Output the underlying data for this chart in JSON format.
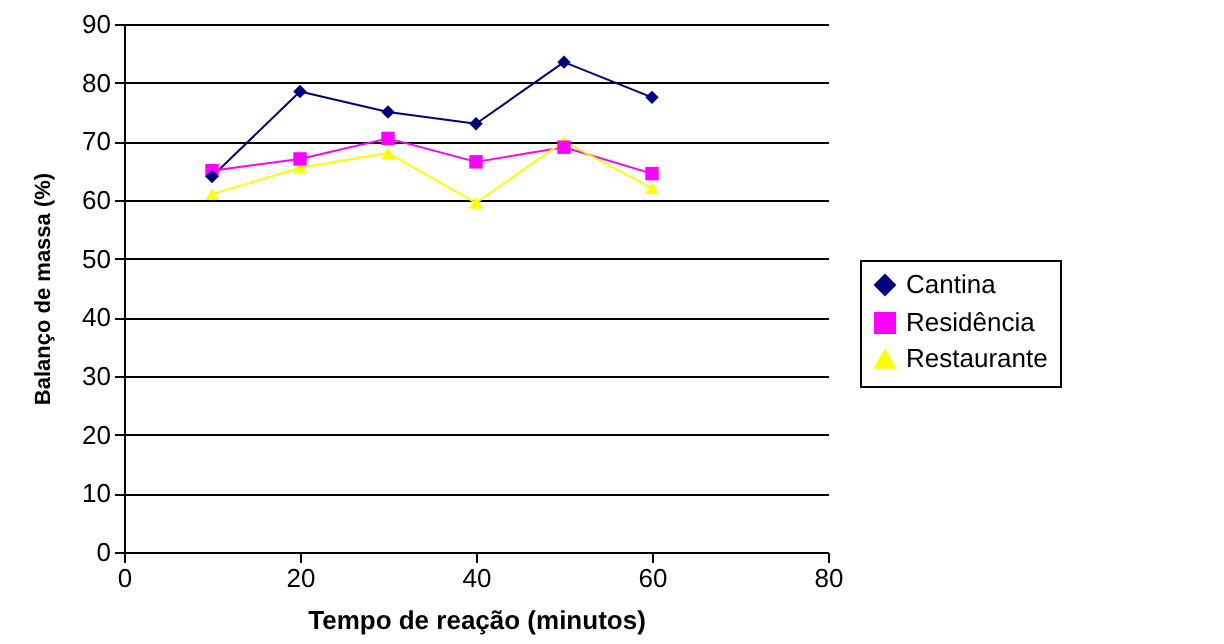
{
  "chart_data": {
    "type": "line",
    "xlabel": "Tempo de reação (minutos)",
    "ylabel": "Balanço de massa (%)",
    "x": [
      10,
      20,
      30,
      40,
      50,
      60
    ],
    "series": [
      {
        "name": "Cantina",
        "color": "#000080",
        "marker": "diamond",
        "values": [
          64,
          78.5,
          75,
          73,
          83.5,
          77.5
        ]
      },
      {
        "name": "Residência",
        "color": "#ff00ff",
        "marker": "square",
        "values": [
          65,
          67,
          70.5,
          66.5,
          69,
          64.5
        ]
      },
      {
        "name": "Restaurante",
        "color": "#ffff00",
        "marker": "triangle",
        "values": [
          61,
          65.5,
          68,
          59.5,
          70,
          62
        ]
      }
    ],
    "xlim": [
      0,
      80
    ],
    "xticks": [
      0,
      20,
      40,
      60,
      80
    ],
    "ylim": [
      0,
      90
    ],
    "yticks": [
      0,
      10,
      20,
      30,
      40,
      50,
      60,
      70,
      80,
      90
    ],
    "grid": "y",
    "legend": "right"
  }
}
